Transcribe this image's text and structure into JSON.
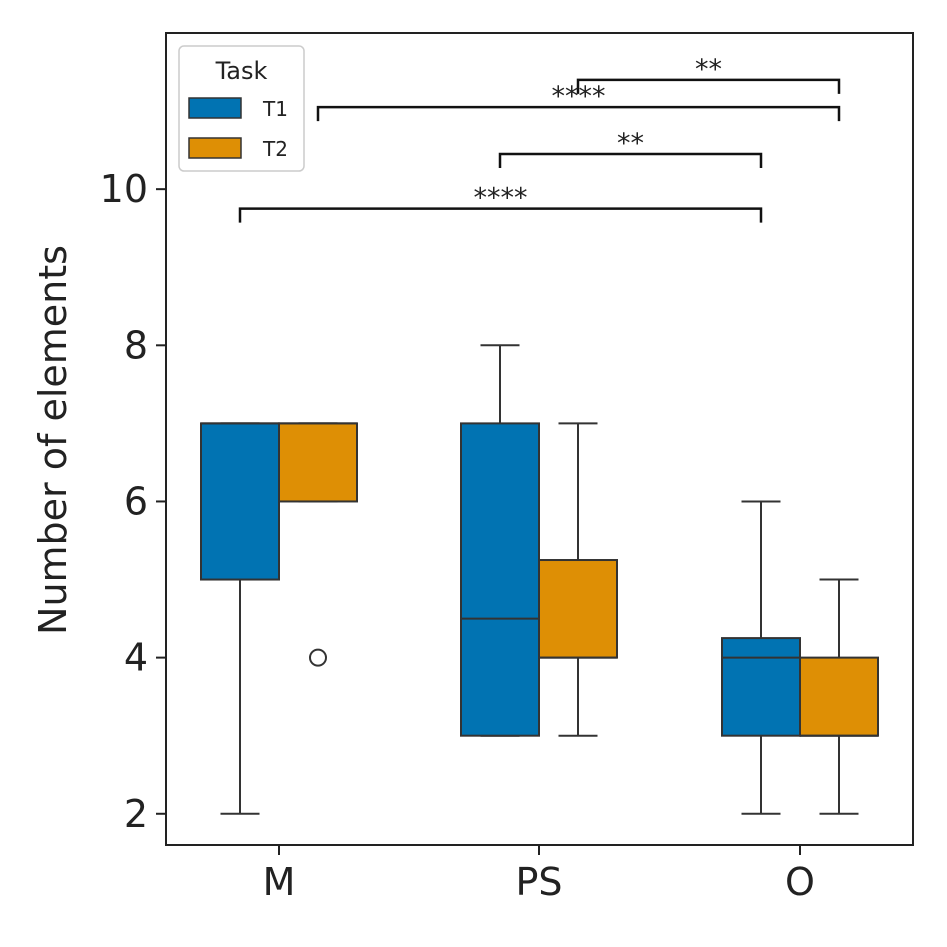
{
  "chart_data": {
    "type": "box",
    "title": "",
    "xlabel": "",
    "ylabel": "Number of elements",
    "ylim": [
      1.6,
      12.0
    ],
    "yticks": [
      2,
      4,
      6,
      8,
      10
    ],
    "categories": [
      "M",
      "PS",
      "O"
    ],
    "legend": {
      "title": "Task",
      "placement": "top-left"
    },
    "grid": false,
    "series": [
      {
        "name": "T1",
        "color": "#0173b2",
        "boxes": [
          {
            "category": "M",
            "whisker_low": 2,
            "q1": 5,
            "median": 7,
            "q3": 7,
            "whisker_high": 7,
            "outliers": []
          },
          {
            "category": "PS",
            "whisker_low": 3,
            "q1": 3,
            "median": 4.5,
            "q3": 7,
            "whisker_high": 8,
            "outliers": []
          },
          {
            "category": "O",
            "whisker_low": 2,
            "q1": 3,
            "median": 4,
            "q3": 4.25,
            "whisker_high": 6,
            "outliers": []
          }
        ]
      },
      {
        "name": "T2",
        "color": "#de8f05",
        "boxes": [
          {
            "category": "M",
            "whisker_low": 6,
            "q1": 6,
            "median": 7,
            "q3": 7,
            "whisker_high": 7,
            "outliers": [
              4
            ]
          },
          {
            "category": "PS",
            "whisker_low": 3,
            "q1": 4,
            "median": 4,
            "q3": 5.25,
            "whisker_high": 7,
            "outliers": []
          },
          {
            "category": "O",
            "whisker_low": 2,
            "q1": 3,
            "median": 3,
            "q3": 4,
            "whisker_high": 5,
            "outliers": []
          }
        ]
      }
    ],
    "significance": [
      {
        "from": {
          "category": "PS",
          "series": "T2"
        },
        "to": {
          "category": "O",
          "series": "T2"
        },
        "label": "**",
        "y": 11.4
      },
      {
        "from": {
          "category": "M",
          "series": "T2"
        },
        "to": {
          "category": "O",
          "series": "T2"
        },
        "label": "****",
        "y": 11.05
      },
      {
        "from": {
          "category": "PS",
          "series": "T1"
        },
        "to": {
          "category": "O",
          "series": "T1"
        },
        "label": "**",
        "y": 10.45
      },
      {
        "from": {
          "category": "M",
          "series": "T1"
        },
        "to": {
          "category": "O",
          "series": "T1"
        },
        "label": "****",
        "y": 9.75
      }
    ]
  }
}
